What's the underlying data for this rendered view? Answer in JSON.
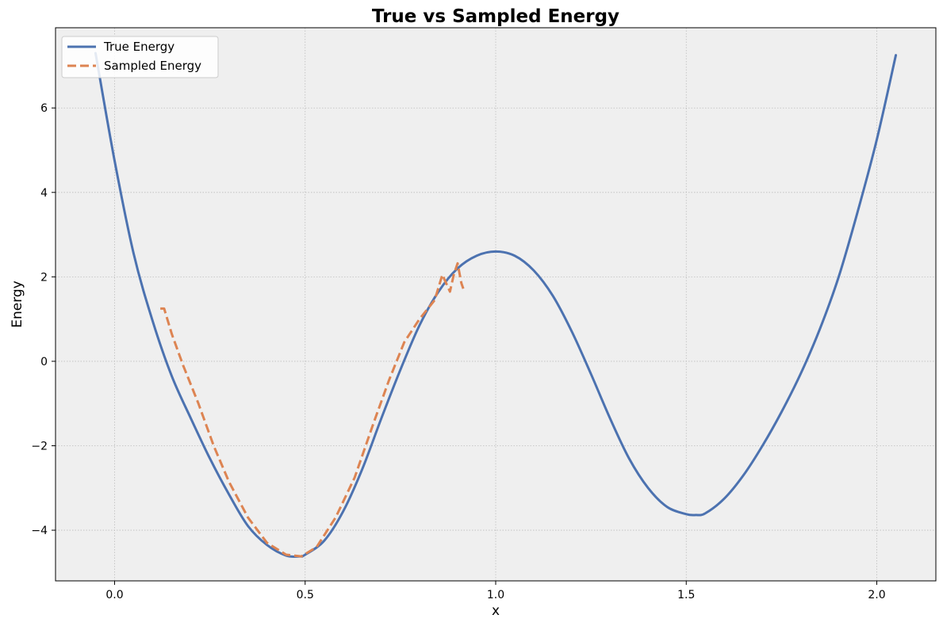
{
  "chart_data": {
    "type": "line",
    "title": "True vs Sampled Energy",
    "xlabel": "x",
    "ylabel": "Energy",
    "xlim": [
      -0.155,
      2.155
    ],
    "ylim": [
      -5.2,
      7.9
    ],
    "xticks": [
      0.0,
      0.5,
      1.0,
      1.5,
      2.0
    ],
    "xtick_labels": [
      "0.0",
      "0.5",
      "1.0",
      "1.5",
      "2.0"
    ],
    "yticks": [
      -4,
      -2,
      0,
      2,
      4,
      6
    ],
    "ytick_labels": [
      "−4",
      "−2",
      "0",
      "2",
      "4",
      "6"
    ],
    "grid": true,
    "legend_position": "upper-left",
    "colors": {
      "plot_bg": "#efefef",
      "true": "#4c72b0",
      "sampled": "#dd8452",
      "grid": "#bdbdbd"
    },
    "series": [
      {
        "name": "True Energy",
        "style": "solid",
        "color": "#4c72b0",
        "x": [
          -0.05,
          0.0,
          0.05,
          0.1,
          0.15,
          0.2,
          0.25,
          0.3,
          0.35,
          0.4,
          0.45,
          0.486,
          0.5,
          0.55,
          0.6,
          0.65,
          0.7,
          0.75,
          0.8,
          0.85,
          0.9,
          0.95,
          1.0,
          1.05,
          1.1,
          1.15,
          1.2,
          1.25,
          1.3,
          1.35,
          1.4,
          1.45,
          1.5,
          1.525,
          1.55,
          1.6,
          1.65,
          1.7,
          1.75,
          1.8,
          1.85,
          1.9,
          1.95,
          2.0,
          2.05
        ],
        "y": [
          7.3,
          4.75,
          2.55,
          0.95,
          -0.35,
          -1.35,
          -2.3,
          -3.15,
          -3.9,
          -4.35,
          -4.6,
          -4.62,
          -4.58,
          -4.25,
          -3.55,
          -2.55,
          -1.35,
          -0.2,
          0.85,
          1.65,
          2.2,
          2.5,
          2.6,
          2.5,
          2.15,
          1.55,
          0.7,
          -0.3,
          -1.35,
          -2.3,
          -3.0,
          -3.45,
          -3.62,
          -3.64,
          -3.6,
          -3.25,
          -2.7,
          -2.0,
          -1.2,
          -0.3,
          0.75,
          2.0,
          3.55,
          5.25,
          7.25
        ]
      },
      {
        "name": "Sampled Energy",
        "style": "dashed",
        "color": "#dd8452",
        "x": [
          0.12,
          0.13,
          0.15,
          0.18,
          0.22,
          0.26,
          0.3,
          0.35,
          0.4,
          0.45,
          0.49,
          0.53,
          0.58,
          0.63,
          0.68,
          0.72,
          0.76,
          0.8,
          0.84,
          0.86,
          0.87,
          0.88,
          0.89,
          0.9,
          0.91,
          0.915
        ],
        "y": [
          1.25,
          1.25,
          0.65,
          -0.1,
          -1.0,
          -2.0,
          -2.85,
          -3.7,
          -4.3,
          -4.58,
          -4.62,
          -4.4,
          -3.7,
          -2.75,
          -1.45,
          -0.45,
          0.45,
          1.0,
          1.45,
          2.05,
          1.85,
          1.65,
          2.05,
          2.32,
          1.85,
          1.72
        ]
      }
    ]
  }
}
